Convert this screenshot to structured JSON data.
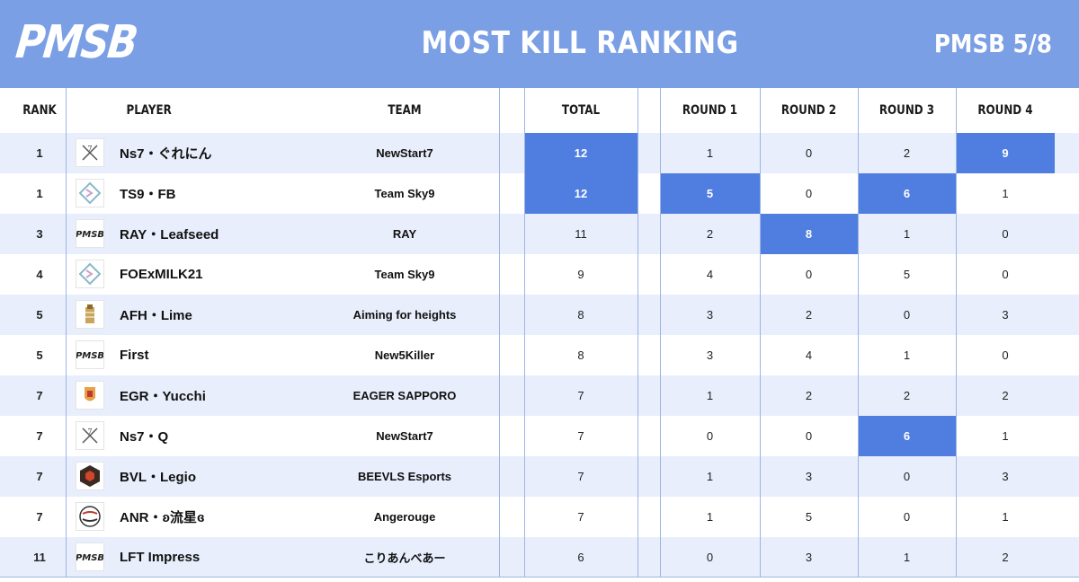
{
  "header": {
    "logo_text": "PMSB",
    "title": "MOST KILL RANKING",
    "edition": "PMSB 5/8"
  },
  "columns": {
    "rank": "RANK",
    "player": "PLAYER",
    "team": "TEAM",
    "total": "TOTAL",
    "round1": "ROUND 1",
    "round2": "ROUND 2",
    "round3": "ROUND 3",
    "round4": "ROUND 4"
  },
  "colors": {
    "header_bg": "#7b9fe4",
    "stripe": "#e8eefb",
    "highlight": "#4f7ee0"
  },
  "rows": [
    {
      "rank": "1",
      "player": "Ns7・ぐれにん",
      "team": "NewStart7",
      "icon": "newstart7-logo-icon",
      "total": "12",
      "r1": "1",
      "r2": "0",
      "r3": "2",
      "r4": "9",
      "hl": [
        "total",
        "r4"
      ]
    },
    {
      "rank": "1",
      "player": "TS9・FB",
      "team": "Team Sky9",
      "icon": "team-sky9-logo-icon",
      "total": "12",
      "r1": "5",
      "r2": "0",
      "r3": "6",
      "r4": "1",
      "hl": [
        "total",
        "r1",
        "r3"
      ]
    },
    {
      "rank": "3",
      "player": "RAY・Leafseed",
      "team": "RAY",
      "icon": "pmsb-logo-icon",
      "total": "11",
      "r1": "2",
      "r2": "8",
      "r3": "1",
      "r4": "0",
      "hl": [
        "r2"
      ]
    },
    {
      "rank": "4",
      "player": "FOExMILK21",
      "team": "Team Sky9",
      "icon": "team-sky9-logo-icon",
      "total": "9",
      "r1": "4",
      "r2": "0",
      "r3": "5",
      "r4": "0",
      "hl": []
    },
    {
      "rank": "5",
      "player": "AFH・Lime",
      "team": "Aiming for heights",
      "icon": "aiming-for-heights-logo-icon",
      "total": "8",
      "r1": "3",
      "r2": "2",
      "r3": "0",
      "r4": "3",
      "hl": []
    },
    {
      "rank": "5",
      "player": "First",
      "team": "New5Killer",
      "icon": "pmsb-logo-icon",
      "total": "8",
      "r1": "3",
      "r2": "4",
      "r3": "1",
      "r4": "0",
      "hl": []
    },
    {
      "rank": "7",
      "player": "EGR・Yucchi",
      "team": "EAGER SAPPORO",
      "icon": "eager-sapporo-logo-icon",
      "total": "7",
      "r1": "1",
      "r2": "2",
      "r3": "2",
      "r4": "2",
      "hl": []
    },
    {
      "rank": "7",
      "player": "Ns7・Q",
      "team": "NewStart7",
      "icon": "newstart7-logo-icon",
      "total": "7",
      "r1": "0",
      "r2": "0",
      "r3": "6",
      "r4": "1",
      "hl": [
        "r3"
      ]
    },
    {
      "rank": "7",
      "player": "BVL・Legio",
      "team": "BEEVLS Esports",
      "icon": "beevls-logo-icon",
      "total": "7",
      "r1": "1",
      "r2": "3",
      "r3": "0",
      "r4": "3",
      "hl": []
    },
    {
      "rank": "7",
      "player": "ANR・ʚ流星ɞ",
      "team": "Angerouge",
      "icon": "angerouge-logo-icon",
      "total": "7",
      "r1": "1",
      "r2": "5",
      "r3": "0",
      "r4": "1",
      "hl": []
    },
    {
      "rank": "11",
      "player": "LFT Impress",
      "team": "こりあんべあー",
      "icon": "pmsb-logo-icon",
      "total": "6",
      "r1": "0",
      "r2": "3",
      "r3": "1",
      "r4": "2",
      "hl": []
    }
  ]
}
